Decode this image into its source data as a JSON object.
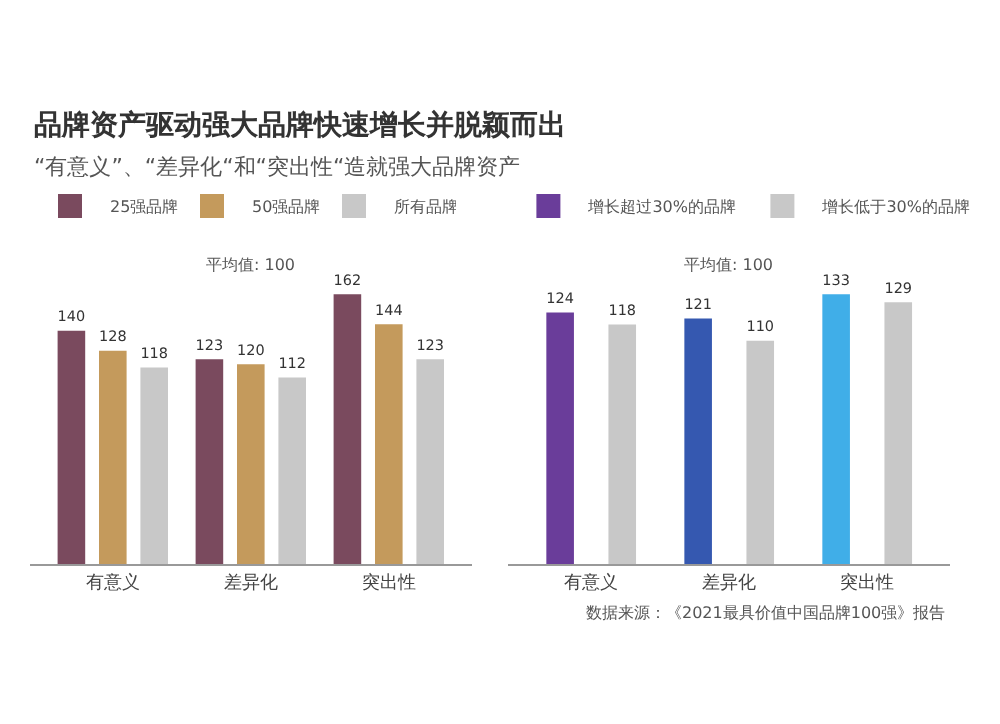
{
  "chart_data": [
    {
      "type": "bar",
      "title": "品牌资产驱动强大品牌快速增长并脱颖而出",
      "subtitle": "“有意义”、“差异化“和“突出性“造就强大品牌资产",
      "annotations": [
        "平均值: 100"
      ],
      "categories": [
        "有意义",
        "差异化",
        "突出性"
      ],
      "tick_labels": "x",
      "data_labels": true,
      "legend": "top",
      "series": [
        {
          "name": "25强品牌",
          "color": "#7a4a5e",
          "values": [
            140,
            123,
            162
          ]
        },
        {
          "name": "50强品牌",
          "color": "#c49a5c",
          "values": [
            128,
            120,
            144
          ]
        },
        {
          "name": "所有品牌",
          "color": "#c8c8c8",
          "values": [
            118,
            112,
            123
          ]
        }
      ]
    },
    {
      "type": "bar",
      "annotations": [
        "平均值: 100",
        "数据来源：《2021最具价值中国品牌100强》报告"
      ],
      "categories": [
        "有意义",
        "差异化",
        "突出性"
      ],
      "tick_labels": "x",
      "data_labels": true,
      "legend": "top",
      "series": [
        {
          "name": "增长超过30%的品牌",
          "colors": [
            "#6a3d9a",
            "#3558b0",
            "#40aee8"
          ],
          "values": [
            124,
            121,
            133
          ]
        },
        {
          "name": "增长低于30%的品牌",
          "color": "#c8c8c8",
          "values": [
            118,
            110,
            129
          ]
        }
      ]
    }
  ]
}
